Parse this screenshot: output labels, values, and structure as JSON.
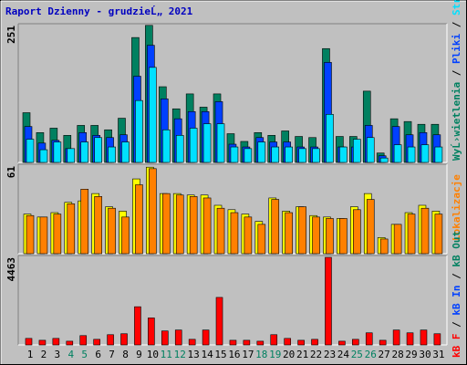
{
  "chart_data": [
    {
      "type": "bar",
      "title": "Raport Dzienny -  grudzieĹ„  2021",
      "ylim": [
        0,
        251
      ],
      "yticks": [
        251
      ],
      "legend_separator": " / ",
      "series": [
        {
          "name": "WyĹ›wietlenia",
          "color": "#008060",
          "values": [
            90,
            54,
            62,
            49,
            67,
            67,
            59,
            80,
            226,
            248,
            137,
            97,
            124,
            100,
            124,
            52,
            38,
            54,
            49,
            57,
            47,
            45,
            206,
            47,
            47,
            129,
            17,
            79,
            74,
            69,
            69
          ]
        },
        {
          "name": "Pliki",
          "color": "#0040ff",
          "values": [
            65,
            35,
            40,
            25,
            54,
            49,
            45,
            50,
            156,
            212,
            115,
            79,
            92,
            92,
            110,
            33,
            28,
            45,
            37,
            37,
            28,
            28,
            181,
            28,
            28,
            67,
            12,
            65,
            50,
            54,
            50
          ]
        },
        {
          "name": "Strony",
          "color": "#00e0ff",
          "values": [
            42,
            23,
            37,
            25,
            37,
            45,
            28,
            37,
            112,
            172,
            59,
            49,
            62,
            70,
            70,
            28,
            25,
            37,
            28,
            28,
            25,
            25,
            87,
            28,
            42,
            45,
            8,
            32,
            28,
            32,
            28
          ]
        }
      ]
    },
    {
      "type": "bar",
      "ylim": [
        0,
        61
      ],
      "yticks": [
        61
      ],
      "series": [
        {
          "color": "#ffff00",
          "values": [
            27,
            25,
            28,
            35,
            36,
            41,
            32,
            29,
            51,
            59,
            41,
            41,
            40,
            40,
            33,
            30,
            27,
            22,
            38,
            29,
            32,
            26,
            25,
            24,
            32,
            41,
            11,
            20,
            28,
            33,
            29
          ]
        },
        {
          "name": "Lokalizacje",
          "color": "#ff8000",
          "values": [
            26,
            25,
            27,
            34,
            44,
            39,
            31,
            25,
            47,
            58,
            41,
            40,
            39,
            38,
            31,
            28,
            25,
            20,
            37,
            28,
            32,
            25,
            24,
            24,
            30,
            37,
            10,
            20,
            27,
            31,
            27
          ]
        }
      ]
    },
    {
      "type": "bar",
      "ylim": [
        0,
        4463
      ],
      "yticks": [
        4463
      ],
      "legend_separator": " / ",
      "categories": [
        "1",
        "2",
        "3",
        "4",
        "5",
        "6",
        "7",
        "8",
        "9",
        "10",
        "11",
        "12",
        "13",
        "14",
        "15",
        "16",
        "17",
        "18",
        "19",
        "20",
        "21",
        "22",
        "23",
        "24",
        "25",
        "26",
        "27",
        "28",
        "29",
        "30",
        "31"
      ],
      "category_colors": [
        "#000000",
        "#000000",
        "#000000",
        "#008060",
        "#008060",
        "#000000",
        "#000000",
        "#000000",
        "#000000",
        "#000000",
        "#008060",
        "#008060",
        "#000000",
        "#000000",
        "#000000",
        "#000000",
        "#000000",
        "#008060",
        "#008060",
        "#000000",
        "#000000",
        "#000000",
        "#000000",
        "#000000",
        "#008060",
        "#008060",
        "#000000",
        "#000000",
        "#000000",
        "#000000",
        "#000000"
      ],
      "series": [
        {
          "name": "kB F",
          "color": "#ff0000",
          "values": [
            325,
            232,
            325,
            186,
            465,
            279,
            511,
            558,
            1906,
            1348,
            697,
            744,
            279,
            744,
            2371,
            232,
            232,
            186,
            511,
            325,
            232,
            279,
            4370,
            186,
            279,
            604,
            232,
            744,
            604,
            744,
            558
          ]
        }
      ],
      "legend_entries": [
        {
          "name": "kB In",
          "color": "#0040ff"
        },
        {
          "name": "kB Out",
          "color": "#008060"
        }
      ]
    }
  ]
}
